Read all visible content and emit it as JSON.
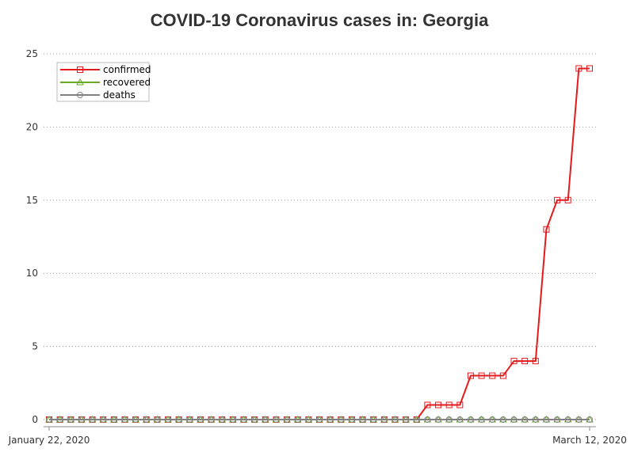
{
  "chart_data": {
    "type": "line",
    "title": "COVID-19 Coronavirus cases in: Georgia",
    "xlabel": "",
    "ylabel": "",
    "x": [
      "2020-01-22",
      "2020-01-23",
      "2020-01-24",
      "2020-01-25",
      "2020-01-26",
      "2020-01-27",
      "2020-01-28",
      "2020-01-29",
      "2020-01-30",
      "2020-01-31",
      "2020-02-01",
      "2020-02-02",
      "2020-02-03",
      "2020-02-04",
      "2020-02-05",
      "2020-02-06",
      "2020-02-07",
      "2020-02-08",
      "2020-02-09",
      "2020-02-10",
      "2020-02-11",
      "2020-02-12",
      "2020-02-13",
      "2020-02-14",
      "2020-02-15",
      "2020-02-16",
      "2020-02-17",
      "2020-02-18",
      "2020-02-19",
      "2020-02-20",
      "2020-02-21",
      "2020-02-22",
      "2020-02-23",
      "2020-02-24",
      "2020-02-25",
      "2020-02-26",
      "2020-02-27",
      "2020-02-28",
      "2020-02-29",
      "2020-03-01",
      "2020-03-02",
      "2020-03-03",
      "2020-03-04",
      "2020-03-05",
      "2020-03-06",
      "2020-03-07",
      "2020-03-08",
      "2020-03-09",
      "2020-03-10",
      "2020-03-11",
      "2020-03-12"
    ],
    "x_tick_labels": [
      "January 22, 2020",
      "March 12, 2020"
    ],
    "y_ticks": [
      0,
      5,
      10,
      15,
      20,
      25
    ],
    "ylim": [
      0,
      25
    ],
    "grid": "horizontal-dotted",
    "legend_position": "top-left",
    "series": [
      {
        "name": "confirmed",
        "color": "#e41a1c",
        "marker": "square",
        "values": [
          0,
          0,
          0,
          0,
          0,
          0,
          0,
          0,
          0,
          0,
          0,
          0,
          0,
          0,
          0,
          0,
          0,
          0,
          0,
          0,
          0,
          0,
          0,
          0,
          0,
          0,
          0,
          0,
          0,
          0,
          0,
          0,
          0,
          0,
          0,
          1,
          1,
          1,
          1,
          3,
          3,
          3,
          3,
          4,
          4,
          4,
          13,
          15,
          15,
          24,
          24
        ]
      },
      {
        "name": "recovered",
        "color": "#6aaa2a",
        "marker": "triangle",
        "values": [
          0,
          0,
          0,
          0,
          0,
          0,
          0,
          0,
          0,
          0,
          0,
          0,
          0,
          0,
          0,
          0,
          0,
          0,
          0,
          0,
          0,
          0,
          0,
          0,
          0,
          0,
          0,
          0,
          0,
          0,
          0,
          0,
          0,
          0,
          0,
          0,
          0,
          0,
          0,
          0,
          0,
          0,
          0,
          0,
          0,
          0,
          0,
          0,
          0,
          0,
          0
        ]
      },
      {
        "name": "deaths",
        "color": "#808080",
        "marker": "circle",
        "values": [
          0,
          0,
          0,
          0,
          0,
          0,
          0,
          0,
          0,
          0,
          0,
          0,
          0,
          0,
          0,
          0,
          0,
          0,
          0,
          0,
          0,
          0,
          0,
          0,
          0,
          0,
          0,
          0,
          0,
          0,
          0,
          0,
          0,
          0,
          0,
          0,
          0,
          0,
          0,
          0,
          0,
          0,
          0,
          0,
          0,
          0,
          0,
          0,
          0,
          0,
          0
        ]
      }
    ]
  }
}
